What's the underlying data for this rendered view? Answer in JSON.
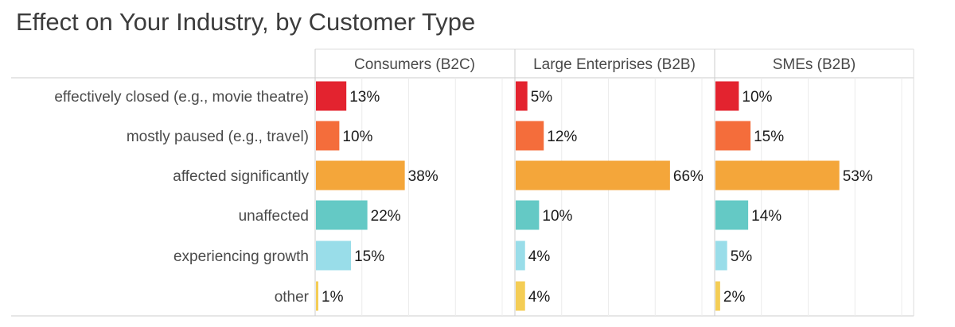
{
  "title": "Effect on Your Industry, by Customer Type",
  "chart_data": {
    "type": "bar",
    "orientation": "horizontal",
    "title": "Effect on Your Industry, by Customer Type",
    "categories": [
      "effectively closed (e.g., movie theatre)",
      "mostly paused (e.g., travel)",
      "affected significantly",
      "unaffected",
      "experiencing growth",
      "other"
    ],
    "category_colors": [
      "#e3232f",
      "#f46d3b",
      "#f4a63a",
      "#64c9c5",
      "#99dde9",
      "#f4cd55"
    ],
    "value_suffix": "%",
    "xlim": [
      0,
      80
    ],
    "grid": true,
    "panels": [
      {
        "name": "Consumers (B2C)",
        "values": [
          13,
          10,
          38,
          22,
          15,
          1
        ]
      },
      {
        "name": "Large Enterprises (B2B)",
        "values": [
          5,
          12,
          66,
          10,
          4,
          4
        ]
      },
      {
        "name": "SMEs (B2B)",
        "values": [
          10,
          15,
          53,
          14,
          5,
          2
        ]
      }
    ]
  }
}
